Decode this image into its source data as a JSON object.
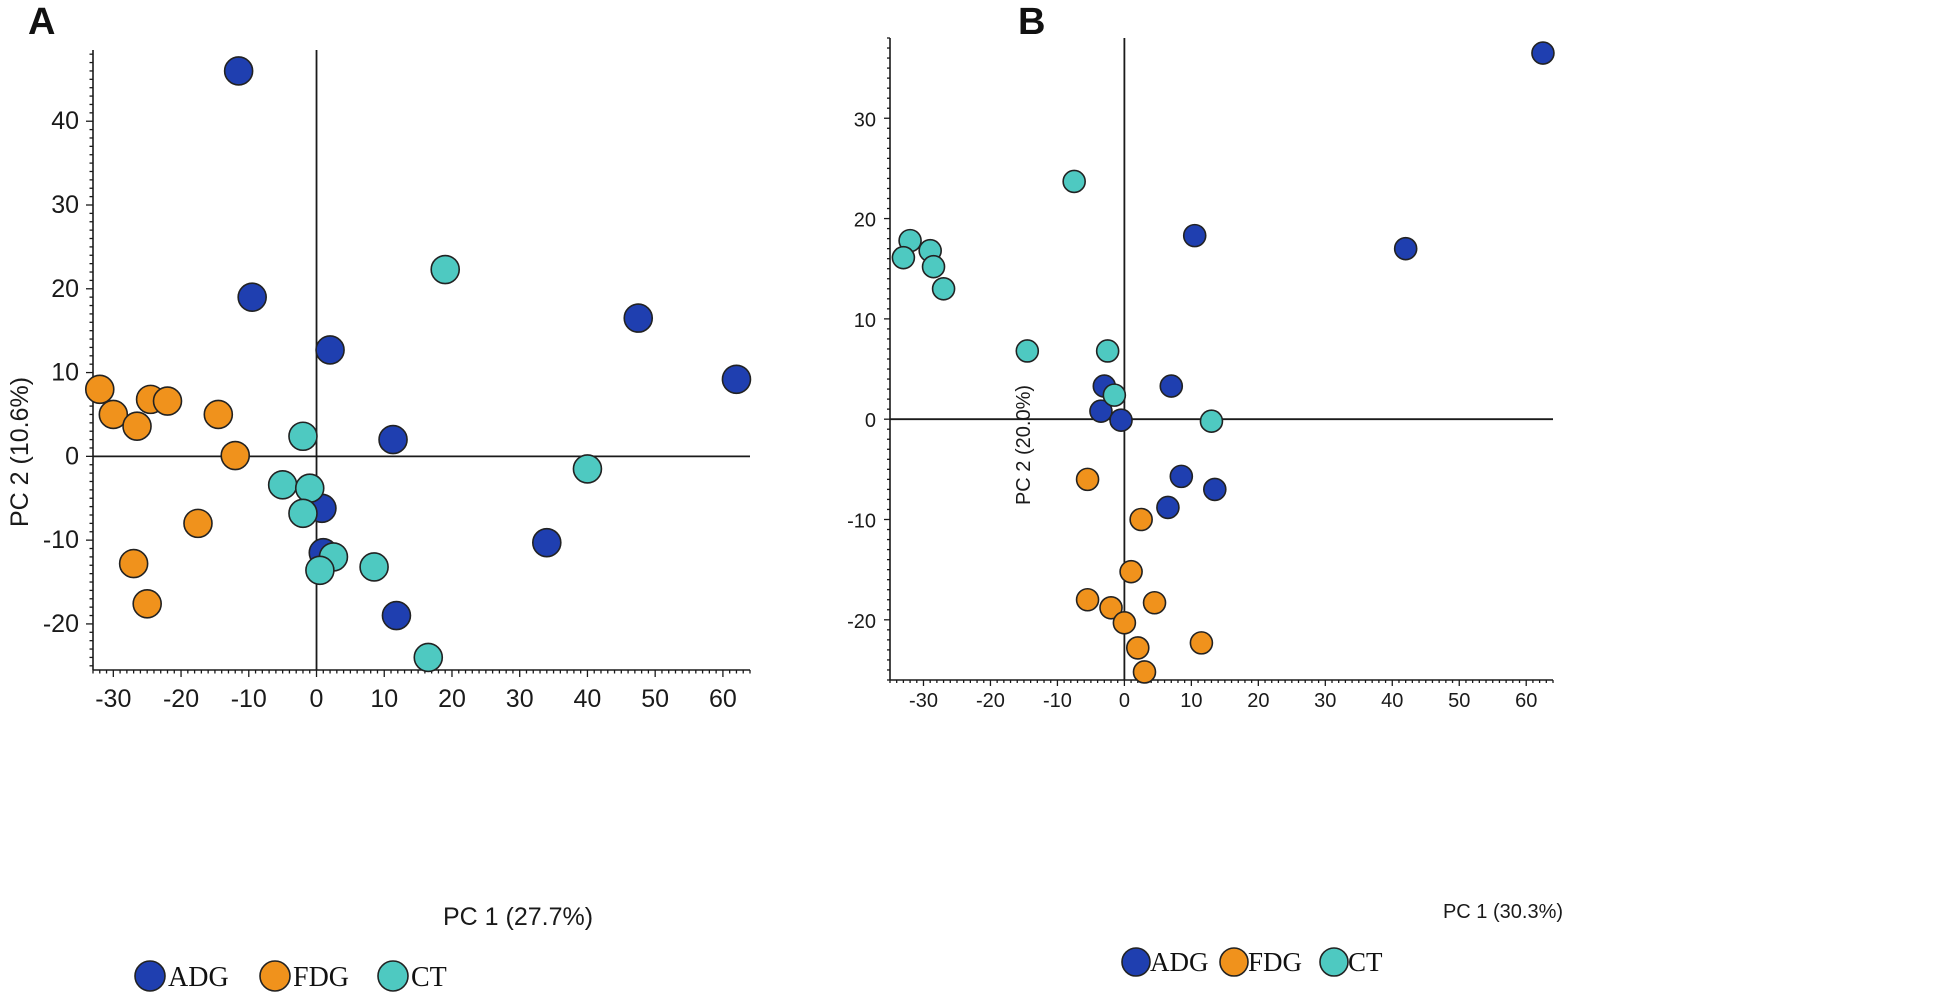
{
  "groups": [
    {
      "key": "ADG",
      "label": "ADG",
      "color": "#1f3fb0"
    },
    {
      "key": "FDG",
      "label": "FDG",
      "color": "#f0921c"
    },
    {
      "key": "CT",
      "label": "CT",
      "color": "#4ec9c1"
    }
  ],
  "chart_data": [
    {
      "type": "scatter",
      "panel_label": "A",
      "xlabel": "PC 1 (27.7%)",
      "ylabel": "PC 2 (10.6%)",
      "xlim": [
        -33,
        64
      ],
      "ylim": [
        -25.5,
        48.5
      ],
      "xticks": [
        -30,
        -20,
        -10,
        0,
        10,
        20,
        30,
        40,
        50,
        60
      ],
      "yticks": [
        -20,
        -10,
        0,
        10,
        20,
        30,
        40
      ],
      "legend_position": "bottom-left",
      "series": [
        {
          "name": "ADG",
          "points": [
            [
              -11.5,
              46
            ],
            [
              -9.5,
              19
            ],
            [
              2,
              12.7
            ],
            [
              47.5,
              16.5
            ],
            [
              62,
              9.2
            ],
            [
              11.3,
              2
            ],
            [
              0.8,
              -6.2
            ],
            [
              1,
              -11.5
            ],
            [
              34,
              -10.3
            ],
            [
              11.8,
              -19
            ]
          ]
        },
        {
          "name": "FDG",
          "points": [
            [
              -32,
              8
            ],
            [
              -30,
              5
            ],
            [
              -26.5,
              3.6
            ],
            [
              -24.5,
              6.8
            ],
            [
              -22,
              6.6
            ],
            [
              -14.5,
              5
            ],
            [
              -12,
              0.1
            ],
            [
              -17.5,
              -8
            ],
            [
              -27,
              -12.8
            ],
            [
              -25,
              -17.6
            ]
          ]
        },
        {
          "name": "CT",
          "points": [
            [
              19,
              22.3
            ],
            [
              -2,
              2.4
            ],
            [
              -5,
              -3.4
            ],
            [
              -1,
              -3.8
            ],
            [
              -2,
              -6.8
            ],
            [
              2.5,
              -12
            ],
            [
              0.5,
              -13.6
            ],
            [
              8.5,
              -13.2
            ],
            [
              40,
              -1.5
            ],
            [
              16.5,
              -24
            ]
          ]
        }
      ]
    },
    {
      "type": "scatter",
      "panel_label": "B",
      "xlabel": "PC 1 (30.3%)",
      "ylabel": "PC 2 (20.0%)",
      "xlim": [
        -35,
        64
      ],
      "ylim": [
        -26,
        38
      ],
      "xticks": [
        -30,
        -20,
        -10,
        0,
        10,
        20,
        30,
        40,
        50,
        60
      ],
      "yticks": [
        -20,
        -10,
        0,
        10,
        20,
        30
      ],
      "legend_position": "bottom-left",
      "series": [
        {
          "name": "ADG",
          "points": [
            [
              62.5,
              36.5
            ],
            [
              10.5,
              18.3
            ],
            [
              42,
              17
            ],
            [
              7,
              3.3
            ],
            [
              -3,
              3.3
            ],
            [
              -3.5,
              0.8
            ],
            [
              -0.5,
              -0.1
            ],
            [
              8.5,
              -5.7
            ],
            [
              13.5,
              -7
            ],
            [
              6.5,
              -8.8
            ]
          ]
        },
        {
          "name": "FDG",
          "points": [
            [
              -5.5,
              -6
            ],
            [
              2.5,
              -10
            ],
            [
              1,
              -15.2
            ],
            [
              -5.5,
              -18
            ],
            [
              -2,
              -18.8
            ],
            [
              4.5,
              -18.3
            ],
            [
              0,
              -20.3
            ],
            [
              2,
              -22.8
            ],
            [
              11.5,
              -22.3
            ],
            [
              3,
              -25.2
            ]
          ]
        },
        {
          "name": "CT",
          "points": [
            [
              -7.5,
              23.7
            ],
            [
              -32,
              17.8
            ],
            [
              -33,
              16.1
            ],
            [
              -29,
              16.8
            ],
            [
              -28.5,
              15.2
            ],
            [
              -27,
              13
            ],
            [
              -14.5,
              6.8
            ],
            [
              -2.5,
              6.8
            ],
            [
              -1.5,
              2.4
            ],
            [
              13,
              -0.2
            ]
          ]
        }
      ]
    }
  ]
}
